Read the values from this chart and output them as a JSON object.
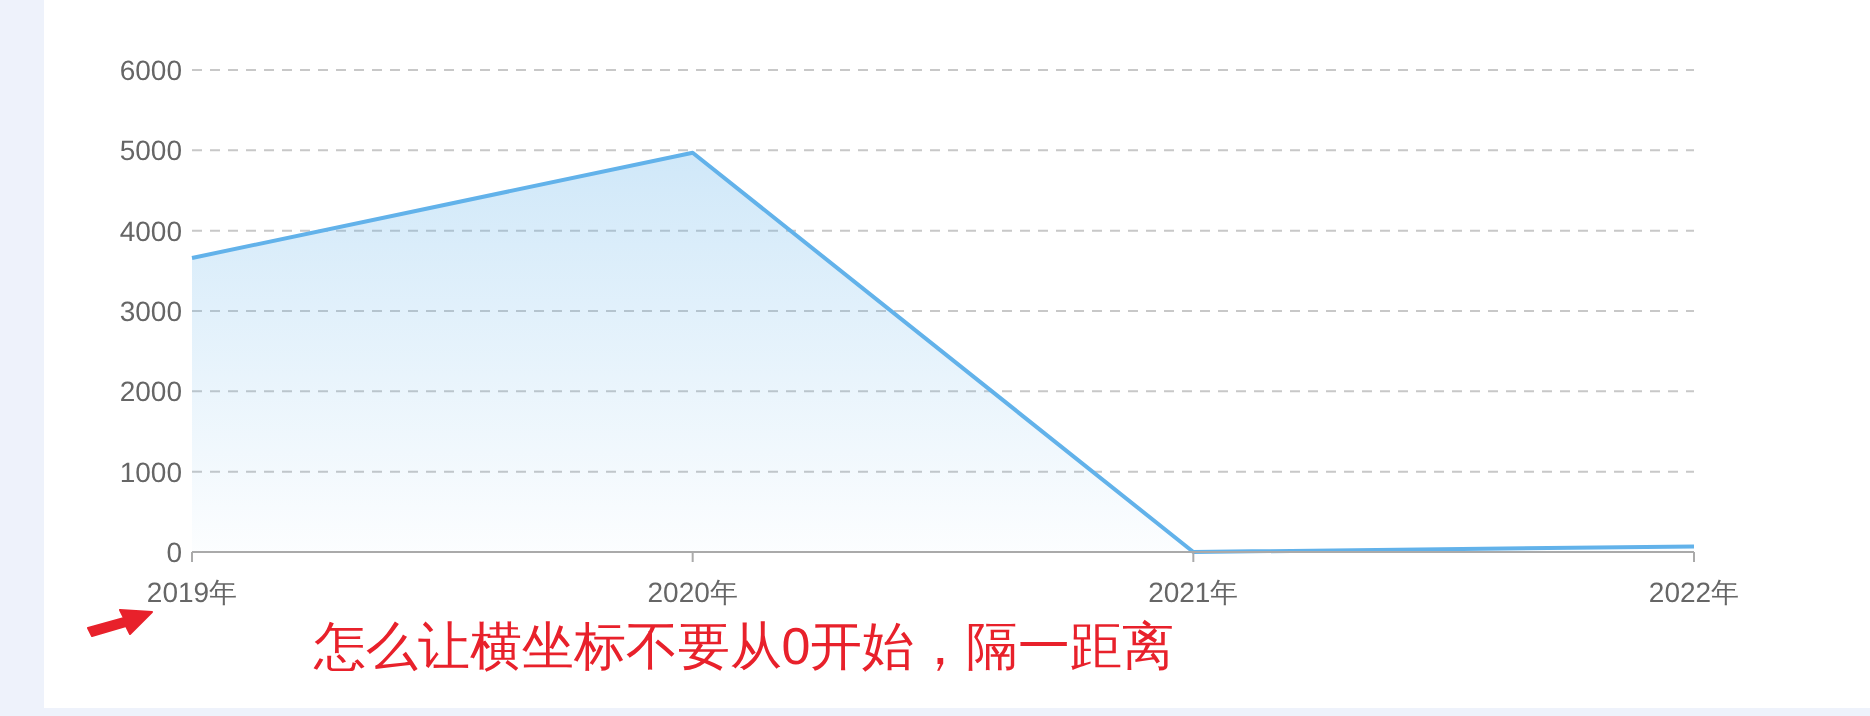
{
  "chart_data": {
    "type": "area",
    "categories": [
      "2019年",
      "2020年",
      "2021年",
      "2022年"
    ],
    "values": [
      3660,
      4970,
      0,
      70
    ],
    "color": "#62b2ea",
    "ylim": [
      0,
      6000
    ],
    "yticks": [
      0,
      1000,
      2000,
      3000,
      4000,
      5000,
      6000
    ],
    "grid": "y",
    "annotations": [
      "怎么让横坐标不要从0开始，隔一距离"
    ]
  }
}
